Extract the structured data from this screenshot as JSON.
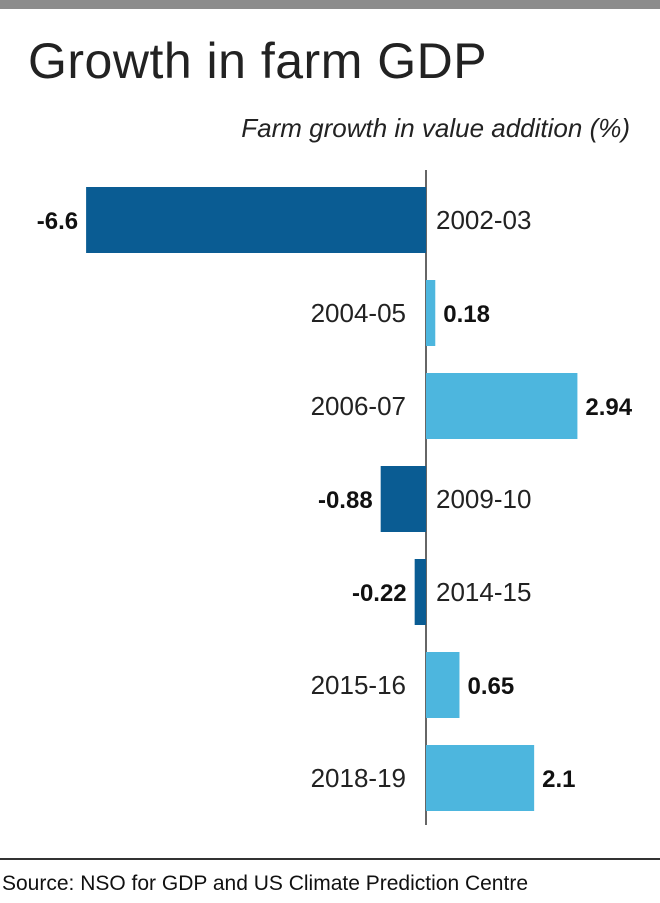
{
  "title": "Growth in farm GDP",
  "subtitle": "Farm growth in value addition (%)",
  "source": "Source: NSO for GDP and US Climate Prediction Centre",
  "colors": {
    "negative": "#0a5c93",
    "positive": "#4db6de",
    "axis": "#333333",
    "top_bar": "#8c8c8c"
  },
  "chart_data": {
    "type": "bar",
    "orientation": "horizontal",
    "categories": [
      "2002-03",
      "2004-05",
      "2006-07",
      "2009-10",
      "2014-15",
      "2015-16",
      "2018-19"
    ],
    "values": [
      -6.6,
      0.18,
      2.94,
      -0.88,
      -0.22,
      0.65,
      2.1
    ],
    "value_labels": [
      "-6.6",
      "0.18",
      "2.94",
      "-0.88",
      "-0.22",
      "0.65",
      "2.1"
    ],
    "title": "Growth in farm GDP",
    "subtitle": "Farm growth in value addition (%)",
    "xlim": [
      -8.0,
      4.0
    ],
    "grid": false,
    "legend": "none"
  }
}
